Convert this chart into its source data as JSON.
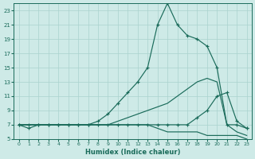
{
  "xlabel": "Humidex (Indice chaleur)",
  "bg_color": "#ceeae7",
  "grid_color": "#aad3ce",
  "line_color": "#1a6b5a",
  "xlim": [
    -0.5,
    23.5
  ],
  "ylim": [
    5,
    24
  ],
  "x_ticks": [
    0,
    1,
    2,
    3,
    4,
    5,
    6,
    7,
    8,
    9,
    10,
    11,
    12,
    13,
    14,
    15,
    16,
    17,
    18,
    19,
    20,
    21,
    22,
    23
  ],
  "y_ticks": [
    5,
    7,
    9,
    11,
    13,
    15,
    17,
    19,
    21,
    23
  ],
  "lines": [
    {
      "x": [
        0,
        1,
        2,
        3,
        4,
        5,
        6,
        7,
        8,
        9,
        10,
        11,
        12,
        13,
        14,
        15,
        16,
        17,
        18,
        19,
        20,
        21,
        22,
        23
      ],
      "y": [
        7,
        7,
        7,
        7,
        7,
        7,
        7,
        7,
        7.5,
        8.5,
        10,
        11.5,
        13,
        15,
        21,
        24,
        21,
        19.5,
        19,
        18,
        15,
        7,
        7,
        6.5
      ],
      "marker": true
    },
    {
      "x": [
        0,
        1,
        2,
        3,
        4,
        5,
        6,
        7,
        8,
        9,
        10,
        11,
        12,
        13,
        14,
        15,
        16,
        17,
        18,
        19,
        20,
        21,
        22,
        23
      ],
      "y": [
        7,
        6.5,
        7,
        7,
        7,
        7,
        7,
        7,
        7,
        7,
        7,
        7,
        7,
        7,
        7,
        7,
        7,
        7,
        8,
        9,
        11,
        11.5,
        7.5,
        6.5
      ],
      "marker": true
    },
    {
      "x": [
        0,
        1,
        2,
        3,
        4,
        5,
        6,
        7,
        8,
        9,
        10,
        11,
        12,
        13,
        14,
        15,
        16,
        17,
        18,
        19,
        20,
        21,
        22,
        23
      ],
      "y": [
        7,
        7,
        7,
        7,
        7,
        7,
        7,
        7,
        7,
        7,
        7.5,
        8,
        8.5,
        9,
        9.5,
        10,
        11,
        12,
        13,
        13.5,
        13,
        7,
        6,
        5.5
      ],
      "marker": false
    },
    {
      "x": [
        0,
        1,
        2,
        3,
        4,
        5,
        6,
        7,
        8,
        9,
        10,
        11,
        12,
        13,
        14,
        15,
        16,
        17,
        18,
        19,
        20,
        21,
        22,
        23
      ],
      "y": [
        7,
        7,
        7,
        7,
        7,
        7,
        7,
        7,
        7,
        7,
        7,
        7,
        7,
        7,
        6.5,
        6,
        6,
        6,
        6,
        5.5,
        5.5,
        5.5,
        5.5,
        5
      ],
      "marker": false
    }
  ]
}
